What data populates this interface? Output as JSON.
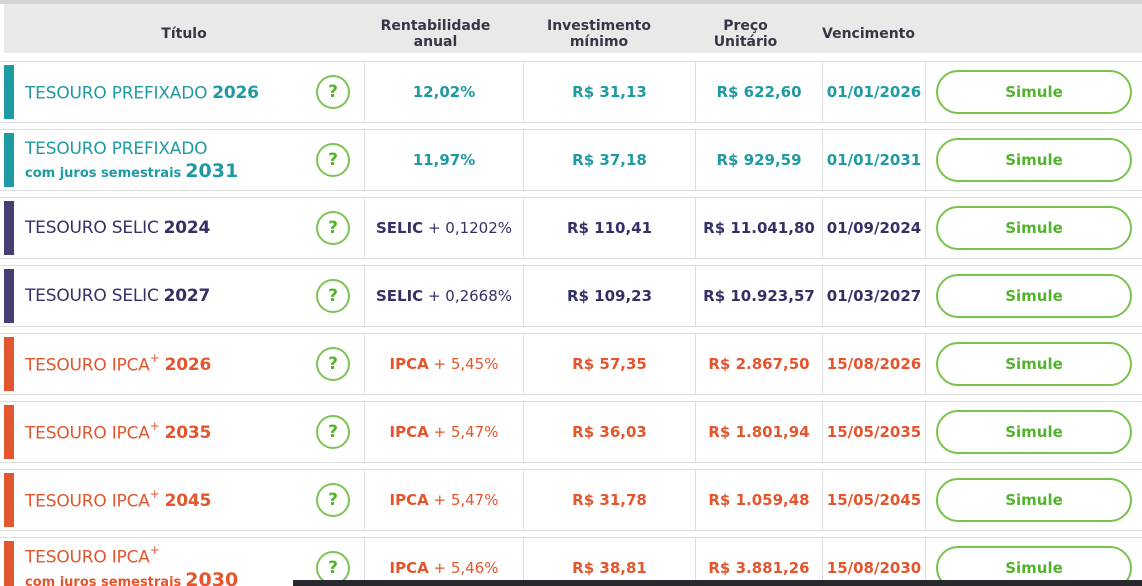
{
  "header": {
    "columns": [
      "Título",
      "Rentabilidade anual",
      "Investimento mínimo",
      "Preço Unitário",
      "Vencimento"
    ]
  },
  "icons": {
    "help": "?"
  },
  "colors": {
    "prefixado_teal": "#1e9aa2",
    "selic_purple": "#453f72",
    "ipca_orange": "#e4552d",
    "action_green": "#54b32c",
    "header_bg": "#e9e9e9"
  },
  "rows": [
    {
      "group": "prefixado",
      "title": "TESOURO PREFIXADO",
      "sup": "",
      "year": "2026",
      "line2": "",
      "line2_year": "",
      "rate_bold": "12,02%",
      "rate_rest": "",
      "min_investment": "R$ 31,13",
      "unit_price": "R$ 622,60",
      "maturity": "01/01/2026",
      "action": "Simule"
    },
    {
      "group": "prefixado",
      "title": "TESOURO PREFIXADO",
      "sup": "",
      "year": "",
      "line2": "com juros semestrais",
      "line2_year": "2031",
      "rate_bold": "11,97%",
      "rate_rest": "",
      "min_investment": "R$ 37,18",
      "unit_price": "R$ 929,59",
      "maturity": "01/01/2031",
      "action": "Simule"
    },
    {
      "group": "selic",
      "title": "TESOURO SELIC",
      "sup": "",
      "year": "2024",
      "line2": "",
      "line2_year": "",
      "rate_bold": "SELIC",
      "rate_rest": " + 0,1202%",
      "min_investment": "R$ 110,41",
      "unit_price": "R$ 11.041,80",
      "maturity": "01/09/2024",
      "action": "Simule"
    },
    {
      "group": "selic",
      "title": "TESOURO SELIC",
      "sup": "",
      "year": "2027",
      "line2": "",
      "line2_year": "",
      "rate_bold": "SELIC",
      "rate_rest": " + 0,2668%",
      "min_investment": "R$ 109,23",
      "unit_price": "R$ 10.923,57",
      "maturity": "01/03/2027",
      "action": "Simule"
    },
    {
      "group": "ipca",
      "title": "TESOURO IPCA",
      "sup": "+",
      "year": "2026",
      "line2": "",
      "line2_year": "",
      "rate_bold": "IPCA",
      "rate_rest": " + 5,45%",
      "min_investment": "R$ 57,35",
      "unit_price": "R$ 2.867,50",
      "maturity": "15/08/2026",
      "action": "Simule"
    },
    {
      "group": "ipca",
      "title": "TESOURO IPCA",
      "sup": "+",
      "year": "2035",
      "line2": "",
      "line2_year": "",
      "rate_bold": "IPCA",
      "rate_rest": " + 5,47%",
      "min_investment": "R$ 36,03",
      "unit_price": "R$ 1.801,94",
      "maturity": "15/05/2035",
      "action": "Simule"
    },
    {
      "group": "ipca",
      "title": "TESOURO IPCA",
      "sup": "+",
      "year": "2045",
      "line2": "",
      "line2_year": "",
      "rate_bold": "IPCA",
      "rate_rest": " + 5,47%",
      "min_investment": "R$ 31,78",
      "unit_price": "R$ 1.059,48",
      "maturity": "15/05/2045",
      "action": "Simule"
    },
    {
      "group": "ipca",
      "title": "TESOURO IPCA",
      "sup": "+",
      "year": "",
      "line2": "com juros semestrais",
      "line2_year": "2030",
      "rate_bold": "IPCA",
      "rate_rest": " + 5,46%",
      "min_investment": "R$ 38,81",
      "unit_price": "R$ 3.881,26",
      "maturity": "15/08/2030",
      "action": "Simule"
    }
  ]
}
